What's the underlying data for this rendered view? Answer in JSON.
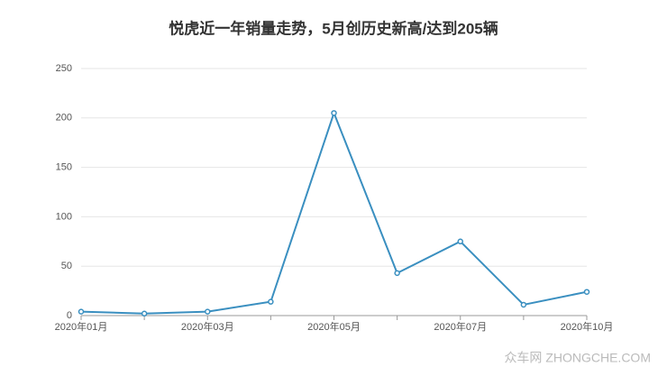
{
  "chart_data": {
    "type": "line",
    "title": "悦虎近一年销量走势，5月创历史新高/达到205辆",
    "categories": [
      "2020年01月",
      null,
      "2020年03月",
      null,
      "2020年05月",
      null,
      "2020年07月",
      null,
      "2020年10月"
    ],
    "series": [
      {
        "name": "悦虎",
        "color": "#3a8fc0",
        "values": [
          4,
          2,
          4,
          14,
          205,
          43,
          75,
          11,
          24
        ]
      }
    ],
    "ylim": [
      0,
      250
    ],
    "yticks": [
      0,
      50,
      100,
      150,
      200,
      250
    ],
    "grid": true
  },
  "watermark": "众车网 ZHONGCHE.COM"
}
